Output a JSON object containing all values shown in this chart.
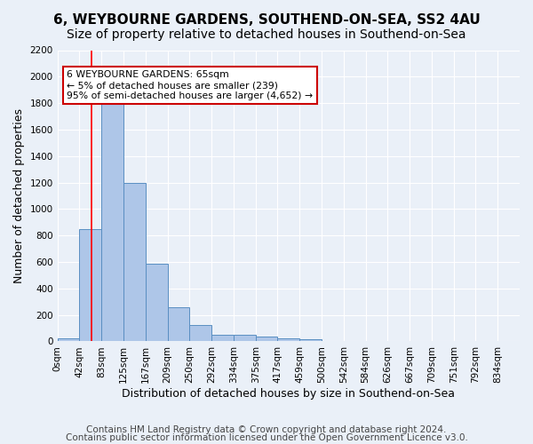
{
  "title": "6, WEYBOURNE GARDENS, SOUTHEND-ON-SEA, SS2 4AU",
  "subtitle": "Size of property relative to detached houses in Southend-on-Sea",
  "xlabel": "Distribution of detached houses by size in Southend-on-Sea",
  "ylabel": "Number of detached properties",
  "footer_line1": "Contains HM Land Registry data © Crown copyright and database right 2024.",
  "footer_line2": "Contains public sector information licensed under the Open Government Licence v3.0.",
  "bin_labels": [
    "0sqm",
    "42sqm",
    "83sqm",
    "125sqm",
    "167sqm",
    "209sqm",
    "250sqm",
    "292sqm",
    "334sqm",
    "375sqm",
    "417sqm",
    "459sqm",
    "500sqm",
    "542sqm",
    "584sqm",
    "626sqm",
    "667sqm",
    "709sqm",
    "751sqm",
    "792sqm",
    "834sqm"
  ],
  "bar_values": [
    25,
    845,
    1800,
    1200,
    590,
    260,
    125,
    50,
    50,
    35,
    25,
    15,
    0,
    0,
    0,
    0,
    0,
    0,
    0,
    0,
    0
  ],
  "bar_color": "#aec6e8",
  "bar_edge_color": "#5a8fc2",
  "annotation_text": "6 WEYBOURNE GARDENS: 65sqm\n← 5% of detached houses are smaller (239)\n95% of semi-detached houses are larger (4,652) →",
  "annotation_box_color": "#ffffff",
  "annotation_box_edge_color": "#cc0000",
  "red_line_x": 65,
  "bin_width": 42,
  "ylim": [
    0,
    2200
  ],
  "yticks": [
    0,
    200,
    400,
    600,
    800,
    1000,
    1200,
    1400,
    1600,
    1800,
    2000,
    2200
  ],
  "background_color": "#eaf0f8",
  "axes_background": "#eaf0f8",
  "grid_color": "#ffffff",
  "title_fontsize": 11,
  "subtitle_fontsize": 10,
  "tick_fontsize": 7.5,
  "label_fontsize": 9,
  "footer_fontsize": 7.5
}
